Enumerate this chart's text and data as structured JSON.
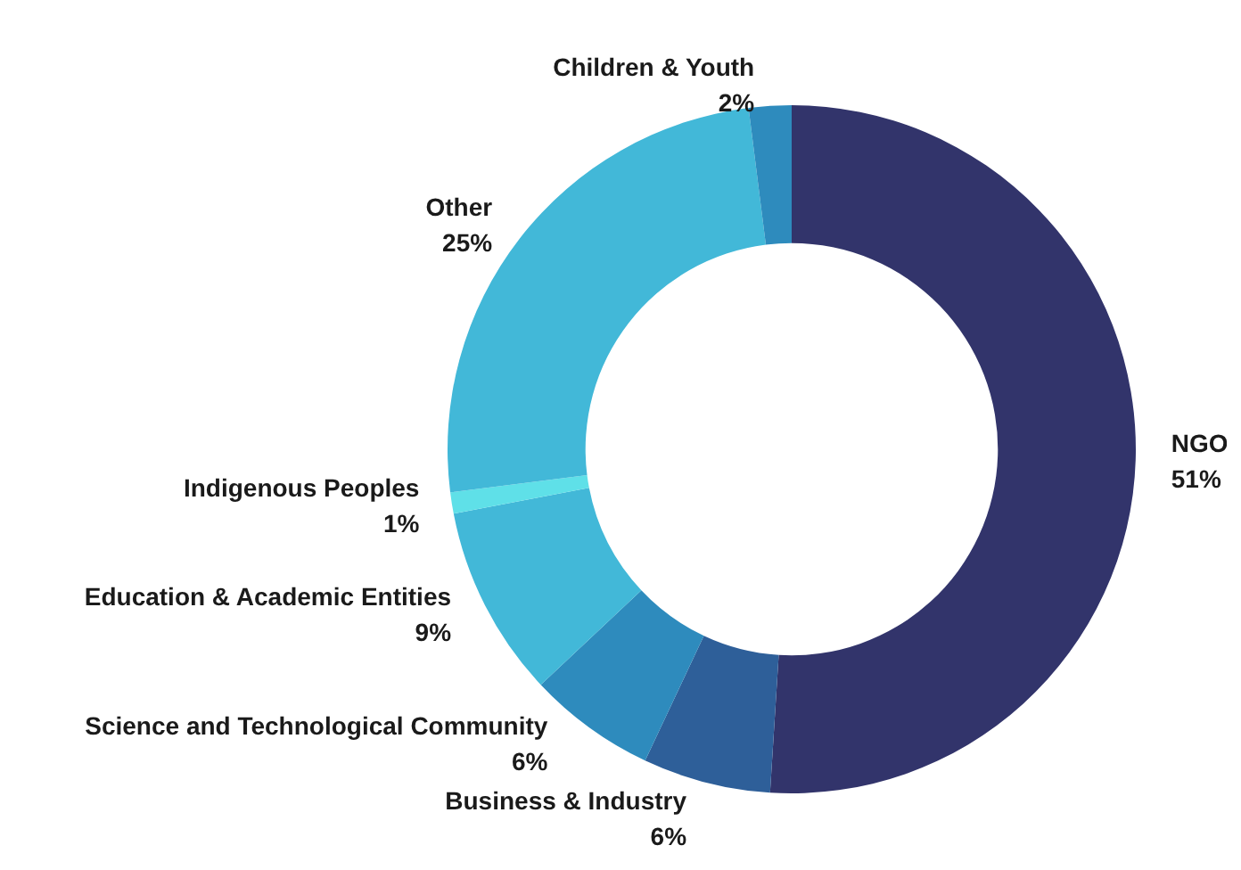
{
  "chart_data": {
    "type": "donut",
    "categories": [
      "NGO",
      "Business & Industry",
      "Science and Technological Community",
      "Education & Academic Entities",
      "Indigenous Peoples",
      "Other",
      "Children & Youth"
    ],
    "values": [
      51,
      6,
      6,
      9,
      1,
      25,
      2
    ],
    "value_labels": [
      "51%",
      "6%",
      "6%",
      "9%",
      "1%",
      "25%",
      "2%"
    ],
    "colors": [
      "#32346b",
      "#2e5f99",
      "#2e8bbd",
      "#42b8d8",
      "#5fe0e8",
      "#42b8d8",
      "#2e8bbd"
    ],
    "legend": false
  }
}
